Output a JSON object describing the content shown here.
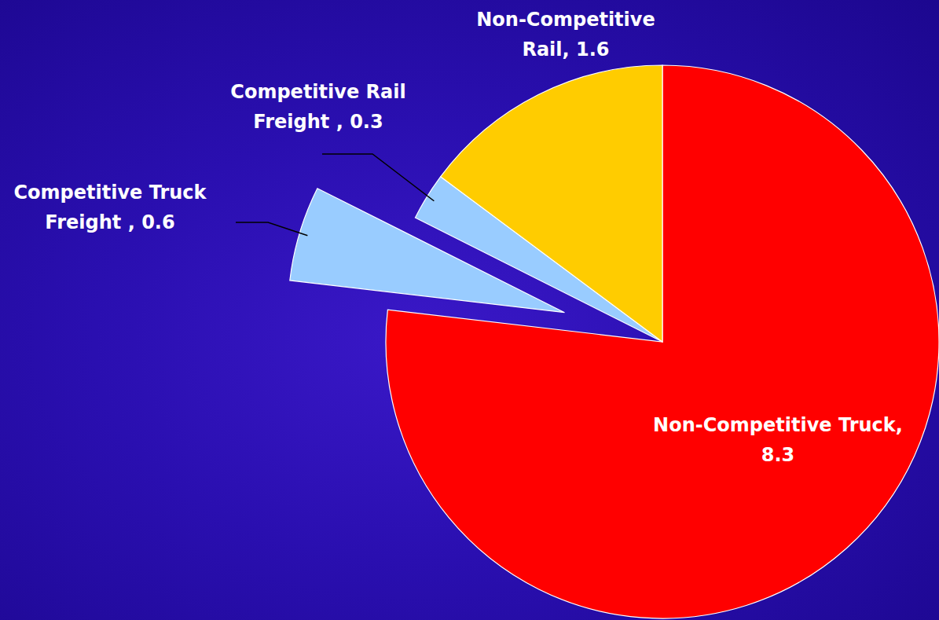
{
  "chart_data": {
    "type": "pie",
    "categories": [
      "Non-Competitive Truck,",
      "Competitive Truck Freight ,",
      "Competitive Rail Freight ,",
      "Non-Competitive Rail,"
    ],
    "values": [
      8.3,
      0.6,
      0.3,
      1.6
    ],
    "colors": [
      "#ff0000",
      "#99ccff",
      "#99ccff",
      "#ffcc00"
    ],
    "data_labels": true
  }
}
